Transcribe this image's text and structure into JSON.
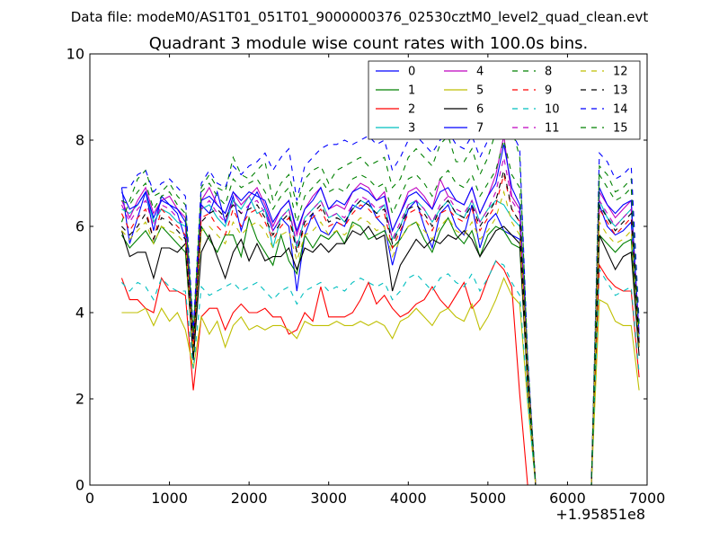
{
  "figure": {
    "suptitle": "Data file: modeM0/AS1T01_051T01_9000000376_02530cztM0_level2_quad_clean.evt"
  },
  "chart_data": {
    "type": "line",
    "title": "Quadrant 3 module wise count rates with 100.0s bins.",
    "xlabel": "",
    "ylabel": "",
    "x_offset_label": "+1.95851e8",
    "xlim": [
      0,
      7000
    ],
    "ylim": [
      0,
      10
    ],
    "xticks": [
      0,
      1000,
      2000,
      3000,
      4000,
      5000,
      6000,
      7000
    ],
    "xtick_labels": [
      "0",
      "1000",
      "2000",
      "3000",
      "4000",
      "5000",
      "6000",
      "7000"
    ],
    "yticks": [
      0,
      2,
      4,
      6,
      8,
      10
    ],
    "ytick_labels": [
      "0",
      "2",
      "4",
      "6",
      "8",
      "10"
    ],
    "grid": false,
    "legend": {
      "position": "top-right",
      "columns": 4
    },
    "x": [
      400,
      500,
      600,
      700,
      800,
      900,
      1000,
      1100,
      1200,
      1300,
      1400,
      1500,
      1600,
      1700,
      1800,
      1900,
      2000,
      2100,
      2200,
      2300,
      2400,
      2500,
      2600,
      2700,
      2800,
      2900,
      3000,
      3100,
      3200,
      3300,
      3400,
      3500,
      3600,
      3700,
      3800,
      3900,
      4000,
      4100,
      4200,
      4300,
      4400,
      4500,
      4600,
      4700,
      4800,
      4900,
      5000,
      5100,
      5200,
      5300,
      5400,
      5500,
      5600,
      5700,
      5800,
      5900,
      6000,
      6100,
      6200,
      6300,
      6400,
      6500,
      6600,
      6700,
      6800,
      6900
    ],
    "series": [
      {
        "name": "0",
        "color": "#0000ff",
        "dash": "solid",
        "values": [
          6.9,
          5.6,
          6.2,
          6.8,
          5.9,
          6.7,
          6.5,
          6.3,
          5.7,
          3.2,
          6.5,
          6.3,
          6.8,
          6.1,
          6.7,
          5.9,
          6.5,
          6.8,
          6.4,
          5.9,
          6.2,
          6.0,
          4.5,
          5.8,
          6.3,
          5.9,
          5.8,
          6.1,
          6.0,
          6.5,
          6.4,
          6.6,
          6.2,
          6.0,
          5.1,
          5.8,
          6.4,
          6.6,
          6.0,
          5.5,
          6.3,
          6.5,
          6.0,
          5.8,
          6.5,
          5.5,
          6.1,
          6.3,
          5.9,
          5.8,
          5.7,
          2.5,
          0,
          0,
          0,
          0,
          0,
          0,
          0,
          0,
          6.5,
          6.0,
          5.8,
          5.9,
          6.1,
          3.3
        ]
      },
      {
        "name": "1",
        "color": "#008000",
        "dash": "solid",
        "values": [
          5.8,
          5.5,
          5.7,
          5.9,
          5.6,
          6.0,
          5.8,
          5.6,
          5.4,
          3.0,
          6.0,
          5.7,
          5.4,
          5.8,
          5.8,
          5.3,
          6.2,
          5.7,
          5.4,
          5.1,
          5.8,
          5.2,
          4.9,
          5.8,
          5.5,
          5.8,
          5.7,
          5.9,
          5.6,
          6.1,
          6.0,
          5.7,
          5.8,
          5.9,
          5.5,
          5.7,
          6.0,
          6.1,
          5.7,
          5.4,
          5.9,
          6.2,
          5.8,
          5.6,
          5.9,
          5.3,
          5.8,
          6.0,
          5.9,
          5.6,
          5.5,
          2.4,
          0,
          0,
          0,
          0,
          0,
          0,
          0,
          0,
          5.8,
          5.6,
          5.4,
          5.6,
          5.7,
          3.2
        ]
      },
      {
        "name": "2",
        "color": "#ff0000",
        "dash": "solid",
        "values": [
          4.8,
          4.3,
          4.3,
          4.1,
          4.0,
          4.8,
          4.5,
          4.5,
          4.4,
          2.2,
          3.9,
          4.1,
          4.1,
          3.6,
          4.0,
          4.2,
          4.0,
          4.0,
          4.1,
          3.9,
          3.9,
          3.5,
          3.6,
          4.0,
          3.8,
          4.6,
          3.9,
          3.9,
          3.9,
          4.0,
          4.3,
          4.7,
          4.2,
          4.4,
          4.1,
          3.9,
          4.0,
          4.2,
          4.3,
          4.6,
          4.3,
          4.1,
          4.4,
          4.7,
          4.1,
          4.3,
          4.8,
          5.2,
          5.0,
          4.6,
          2.1,
          0,
          0,
          0,
          0,
          0,
          0,
          0,
          0,
          0,
          5.1,
          4.8,
          4.6,
          4.5,
          4.5,
          2.5
        ]
      },
      {
        "name": "3",
        "color": "#00bfbf",
        "dash": "solid",
        "values": [
          6.4,
          6.3,
          6.5,
          6.8,
          6.1,
          6.4,
          6.3,
          6.1,
          6.0,
          3.3,
          6.4,
          6.5,
          6.2,
          6.0,
          6.6,
          6.4,
          6.7,
          6.3,
          6.4,
          5.5,
          6.2,
          6.4,
          5.5,
          6.2,
          6.4,
          6.6,
          6.2,
          6.3,
          6.1,
          6.4,
          6.6,
          6.5,
          6.3,
          6.5,
          5.7,
          6.0,
          6.5,
          6.6,
          6.4,
          6.1,
          6.4,
          6.6,
          6.3,
          6.2,
          6.6,
          6.1,
          6.4,
          6.6,
          6.5,
          6.2,
          6.0,
          2.6,
          0,
          0,
          0,
          0,
          0,
          0,
          0,
          0,
          6.6,
          6.2,
          6.0,
          6.2,
          6.4,
          3.4
        ]
      },
      {
        "name": "4",
        "color": "#bf00bf",
        "dash": "solid",
        "values": [
          6.6,
          6.2,
          6.6,
          6.9,
          6.3,
          6.6,
          6.7,
          6.4,
          6.2,
          3.4,
          6.6,
          6.9,
          6.5,
          6.3,
          6.8,
          6.5,
          6.7,
          6.9,
          6.5,
          6.0,
          6.4,
          6.6,
          5.8,
          6.4,
          6.7,
          6.9,
          6.4,
          6.5,
          6.4,
          6.8,
          7.0,
          6.9,
          6.6,
          6.8,
          5.9,
          6.3,
          6.8,
          6.9,
          6.7,
          6.4,
          7.1,
          6.7,
          6.6,
          6.5,
          6.9,
          6.3,
          6.7,
          7.2,
          8.1,
          6.7,
          6.4,
          2.8,
          0,
          0,
          0,
          0,
          0,
          0,
          0,
          0,
          6.8,
          6.5,
          6.2,
          6.4,
          6.6,
          3.5
        ]
      },
      {
        "name": "5",
        "color": "#bfbf00",
        "dash": "solid",
        "values": [
          4.0,
          4.0,
          4.0,
          4.1,
          3.7,
          4.1,
          3.8,
          4.0,
          3.6,
          2.7,
          3.9,
          3.5,
          3.8,
          3.2,
          3.7,
          3.9,
          3.6,
          3.7,
          3.6,
          3.7,
          3.7,
          3.6,
          3.4,
          3.8,
          3.7,
          3.7,
          3.7,
          3.8,
          3.7,
          3.7,
          3.8,
          3.7,
          3.8,
          3.7,
          3.4,
          3.8,
          3.9,
          4.1,
          3.9,
          3.7,
          4.0,
          4.1,
          3.9,
          3.8,
          4.2,
          3.6,
          3.9,
          4.3,
          4.8,
          4.4,
          4.2,
          1.9,
          0,
          0,
          0,
          0,
          0,
          0,
          0,
          0,
          4.3,
          4.2,
          3.8,
          3.7,
          3.7,
          2.2
        ]
      },
      {
        "name": "6",
        "color": "#000000",
        "dash": "solid",
        "values": [
          5.9,
          5.3,
          5.4,
          5.4,
          4.8,
          5.5,
          5.5,
          5.4,
          5.6,
          2.9,
          5.4,
          5.8,
          5.3,
          4.8,
          5.4,
          5.7,
          5.2,
          5.6,
          5.2,
          5.3,
          5.3,
          5.5,
          5.0,
          5.5,
          5.4,
          5.6,
          5.4,
          5.6,
          5.6,
          5.9,
          5.8,
          6.0,
          5.7,
          5.8,
          4.5,
          5.1,
          5.4,
          5.7,
          5.5,
          5.7,
          5.6,
          5.8,
          5.7,
          5.9,
          5.7,
          5.3,
          5.6,
          5.9,
          6.0,
          5.8,
          5.6,
          2.3,
          0,
          0,
          0,
          0,
          0,
          0,
          0,
          0,
          5.8,
          5.4,
          5.0,
          5.3,
          5.4,
          3.0
        ]
      },
      {
        "name": "7",
        "color": "#0000ff",
        "dash": "solid",
        "values": [
          6.8,
          6.4,
          6.5,
          6.8,
          6.2,
          6.6,
          6.5,
          6.4,
          6.1,
          3.4,
          6.6,
          6.7,
          6.5,
          6.3,
          6.8,
          6.6,
          6.8,
          6.7,
          6.6,
          6.1,
          6.4,
          6.6,
          5.9,
          6.4,
          6.6,
          6.9,
          6.4,
          6.6,
          6.5,
          6.8,
          6.9,
          6.8,
          6.6,
          6.7,
          5.9,
          6.3,
          6.7,
          6.8,
          6.6,
          6.4,
          6.8,
          6.9,
          6.6,
          6.5,
          6.9,
          6.3,
          6.7,
          7.0,
          7.9,
          6.9,
          6.5,
          2.8,
          0,
          0,
          0,
          0,
          0,
          0,
          0,
          0,
          6.9,
          6.5,
          6.3,
          6.5,
          6.6,
          3.5
        ]
      },
      {
        "name": "8",
        "color": "#008000",
        "dash": "dashed",
        "values": [
          6.1,
          6.6,
          7.1,
          7.3,
          6.7,
          6.8,
          7.0,
          6.7,
          6.5,
          3.6,
          6.9,
          7.2,
          6.9,
          6.8,
          7.6,
          7.2,
          7.1,
          7.3,
          7.5,
          6.6,
          7.0,
          7.2,
          6.5,
          7.1,
          7.3,
          7.4,
          7.0,
          7.3,
          7.4,
          7.5,
          7.6,
          7.4,
          7.5,
          7.6,
          6.9,
          7.1,
          7.6,
          7.8,
          7.6,
          7.4,
          7.9,
          8.1,
          7.5,
          7.5,
          7.8,
          7.2,
          7.6,
          8.2,
          9.1,
          8.3,
          7.6,
          2.9,
          0,
          0,
          0,
          0,
          0,
          0,
          0,
          0,
          7.4,
          7.2,
          6.8,
          6.9,
          7.1,
          3.7
        ]
      },
      {
        "name": "9",
        "color": "#ff0000",
        "dash": "dashed",
        "values": [
          6.3,
          5.9,
          6.2,
          6.4,
          5.7,
          6.4,
          6.2,
          6.0,
          5.8,
          3.2,
          6.2,
          6.3,
          6.0,
          5.8,
          6.4,
          6.0,
          6.3,
          6.4,
          6.1,
          5.7,
          6.0,
          6.2,
          5.4,
          6.0,
          6.2,
          6.4,
          6.0,
          6.1,
          6.0,
          6.3,
          6.5,
          6.4,
          6.2,
          6.3,
          5.5,
          5.9,
          6.3,
          6.4,
          6.2,
          5.9,
          6.3,
          6.4,
          6.2,
          6.1,
          6.4,
          5.9,
          6.2,
          6.5,
          7.2,
          6.4,
          6.1,
          2.6,
          0,
          0,
          0,
          0,
          0,
          0,
          0,
          0,
          6.4,
          6.1,
          5.8,
          6.0,
          6.2,
          3.3
        ]
      },
      {
        "name": "10",
        "color": "#00bfbf",
        "dash": "dashed",
        "values": [
          4.7,
          4.5,
          4.7,
          4.6,
          4.3,
          4.8,
          4.6,
          4.5,
          4.5,
          2.7,
          4.6,
          4.4,
          4.5,
          4.6,
          4.7,
          4.5,
          4.6,
          4.7,
          4.5,
          4.3,
          4.5,
          4.6,
          4.2,
          4.5,
          4.6,
          4.7,
          4.5,
          4.6,
          4.5,
          4.7,
          4.8,
          4.7,
          4.6,
          4.7,
          4.3,
          4.5,
          4.8,
          4.9,
          4.7,
          4.5,
          4.8,
          4.9,
          4.7,
          4.6,
          4.9,
          4.5,
          4.8,
          5.2,
          5.1,
          4.7,
          4.4,
          2.0,
          0,
          0,
          0,
          0,
          0,
          0,
          0,
          0,
          5.0,
          4.7,
          4.4,
          4.5,
          4.6,
          2.6
        ]
      },
      {
        "name": "11",
        "color": "#bf00bf",
        "dash": "dashed",
        "values": [
          6.5,
          6.1,
          6.4,
          6.6,
          6.0,
          6.5,
          6.4,
          6.2,
          6.0,
          3.3,
          6.4,
          6.6,
          6.3,
          6.1,
          6.6,
          6.3,
          6.5,
          6.6,
          6.3,
          5.9,
          6.2,
          6.4,
          5.6,
          6.2,
          6.4,
          6.6,
          6.2,
          6.3,
          6.2,
          6.5,
          6.7,
          6.6,
          6.4,
          6.5,
          5.7,
          6.1,
          6.5,
          6.6,
          6.4,
          6.1,
          6.5,
          6.7,
          6.4,
          6.3,
          6.6,
          6.1,
          6.4,
          6.8,
          7.6,
          6.6,
          6.3,
          2.7,
          0,
          0,
          0,
          0,
          0,
          0,
          0,
          0,
          6.6,
          6.3,
          6.0,
          6.2,
          6.4,
          3.4
        ]
      },
      {
        "name": "12",
        "color": "#bfbf00",
        "dash": "dashed",
        "values": [
          5.9,
          5.7,
          5.9,
          6.1,
          5.6,
          6.0,
          5.9,
          5.8,
          5.6,
          3.1,
          5.9,
          6.0,
          5.8,
          5.6,
          6.1,
          5.8,
          6.0,
          6.1,
          5.9,
          5.5,
          5.8,
          5.9,
          5.2,
          5.8,
          5.9,
          6.1,
          5.8,
          5.9,
          5.8,
          6.0,
          6.2,
          6.1,
          5.9,
          6.0,
          5.3,
          5.7,
          6.0,
          6.1,
          5.9,
          5.7,
          6.0,
          6.2,
          5.9,
          5.8,
          6.1,
          5.7,
          5.9,
          6.2,
          6.8,
          6.1,
          5.8,
          2.5,
          0,
          0,
          0,
          0,
          0,
          0,
          0,
          0,
          6.1,
          5.8,
          5.6,
          5.7,
          5.9,
          3.2
        ]
      },
      {
        "name": "13",
        "color": "#000000",
        "dash": "dashed",
        "values": [
          6.0,
          5.8,
          6.0,
          6.3,
          5.7,
          6.2,
          6.1,
          5.9,
          5.7,
          3.2,
          6.1,
          6.3,
          6.4,
          6.2,
          6.5,
          6.3,
          6.4,
          6.5,
          6.2,
          5.8,
          6.1,
          6.3,
          5.4,
          6.1,
          6.3,
          6.5,
          6.1,
          6.2,
          6.1,
          6.4,
          6.6,
          6.5,
          6.3,
          6.4,
          5.6,
          6.0,
          6.4,
          6.5,
          6.3,
          6.0,
          6.4,
          6.6,
          6.3,
          6.2,
          6.5,
          6.0,
          6.3,
          6.6,
          7.3,
          6.4,
          6.1,
          2.6,
          0,
          0,
          0,
          0,
          0,
          0,
          0,
          0,
          6.5,
          6.2,
          5.9,
          6.1,
          6.3,
          3.3
        ]
      },
      {
        "name": "14",
        "color": "#0000ff",
        "dash": "dashed",
        "values": [
          6.9,
          6.9,
          7.2,
          7.3,
          6.8,
          7.0,
          7.1,
          6.9,
          6.7,
          3.6,
          7.0,
          7.3,
          7.0,
          6.9,
          7.4,
          7.2,
          7.4,
          7.5,
          7.7,
          7.3,
          7.6,
          7.8,
          6.6,
          7.4,
          7.6,
          7.8,
          7.9,
          7.9,
          8.0,
          7.9,
          8.0,
          8.1,
          7.9,
          8.0,
          7.3,
          7.6,
          8.0,
          8.1,
          7.9,
          7.7,
          8.0,
          8.2,
          7.9,
          7.8,
          8.1,
          7.6,
          8.0,
          8.3,
          8.4,
          8.2,
          7.8,
          3.0,
          0,
          0,
          0,
          0,
          0,
          0,
          0,
          0,
          7.7,
          7.5,
          7.1,
          7.2,
          7.4,
          3.8
        ]
      },
      {
        "name": "15",
        "color": "#008000",
        "dash": "dashed",
        "values": [
          6.6,
          6.5,
          6.8,
          7.0,
          6.4,
          6.7,
          6.8,
          6.5,
          6.3,
          3.5,
          6.8,
          7.0,
          6.7,
          6.5,
          7.1,
          6.9,
          7.0,
          7.1,
          6.8,
          6.4,
          6.7,
          6.9,
          6.1,
          6.7,
          6.9,
          7.1,
          6.8,
          6.9,
          6.8,
          7.1,
          7.2,
          7.1,
          6.9,
          7.0,
          6.3,
          6.7,
          7.1,
          7.2,
          7.0,
          6.7,
          7.1,
          7.3,
          7.0,
          6.9,
          7.2,
          6.7,
          7.0,
          7.3,
          8.0,
          7.2,
          6.9,
          2.8,
          0,
          0,
          0,
          0,
          0,
          0,
          0,
          0,
          7.2,
          6.9,
          6.6,
          6.7,
          6.9,
          3.6
        ]
      }
    ]
  }
}
